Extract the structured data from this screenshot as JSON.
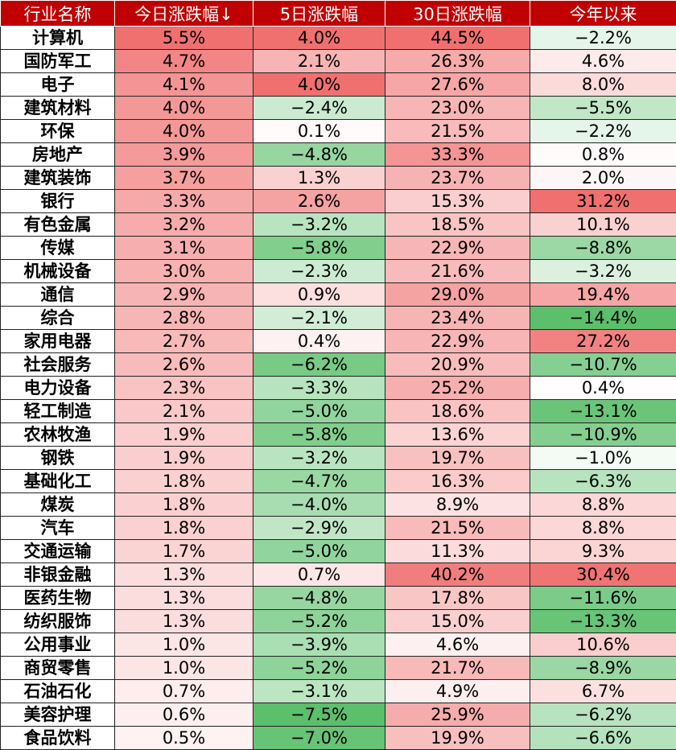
{
  "headers": [
    "行业名称",
    "今日涨跌幅↓",
    "5日涨跌幅",
    "30日涨跌幅",
    "今年以来"
  ],
  "rows": [
    {
      "name": "计算机",
      "d1": "5.5%",
      "d5": "4.0%",
      "d30": "44.5%",
      "ytd": "−2.2%"
    },
    {
      "name": "国防军工",
      "d1": "4.7%",
      "d5": "2.1%",
      "d30": "26.3%",
      "ytd": "4.6%"
    },
    {
      "name": "电子",
      "d1": "4.1%",
      "d5": "4.0%",
      "d30": "27.6%",
      "ytd": "8.0%"
    },
    {
      "name": "建筑材料",
      "d1": "4.0%",
      "d5": "−2.4%",
      "d30": "23.0%",
      "ytd": "−5.5%"
    },
    {
      "name": "环保",
      "d1": "4.0%",
      "d5": "0.1%",
      "d30": "21.5%",
      "ytd": "−2.2%"
    },
    {
      "name": "房地产",
      "d1": "3.9%",
      "d5": "−4.8%",
      "d30": "33.3%",
      "ytd": "0.8%"
    },
    {
      "name": "建筑装饰",
      "d1": "3.7%",
      "d5": "1.3%",
      "d30": "23.7%",
      "ytd": "2.0%"
    },
    {
      "name": "银行",
      "d1": "3.3%",
      "d5": "2.6%",
      "d30": "15.3%",
      "ytd": "31.2%"
    },
    {
      "name": "有色金属",
      "d1": "3.2%",
      "d5": "−3.2%",
      "d30": "18.5%",
      "ytd": "10.1%"
    },
    {
      "name": "传媒",
      "d1": "3.1%",
      "d5": "−5.8%",
      "d30": "22.9%",
      "ytd": "−8.8%"
    },
    {
      "name": "机械设备",
      "d1": "3.0%",
      "d5": "−2.3%",
      "d30": "21.6%",
      "ytd": "−3.2%"
    },
    {
      "name": "通信",
      "d1": "2.9%",
      "d5": "0.9%",
      "d30": "29.0%",
      "ytd": "19.4%"
    },
    {
      "name": "综合",
      "d1": "2.8%",
      "d5": "−2.1%",
      "d30": "23.4%",
      "ytd": "−14.4%"
    },
    {
      "name": "家用电器",
      "d1": "2.7%",
      "d5": "0.4%",
      "d30": "22.9%",
      "ytd": "27.2%"
    },
    {
      "name": "社会服务",
      "d1": "2.6%",
      "d5": "−6.2%",
      "d30": "20.9%",
      "ytd": "−10.7%"
    },
    {
      "name": "电力设备",
      "d1": "2.3%",
      "d5": "−3.3%",
      "d30": "25.2%",
      "ytd": "0.4%"
    },
    {
      "name": "轻工制造",
      "d1": "2.1%",
      "d5": "−5.0%",
      "d30": "18.6%",
      "ytd": "−13.1%"
    },
    {
      "name": "农林牧渔",
      "d1": "1.9%",
      "d5": "−5.8%",
      "d30": "13.6%",
      "ytd": "−10.9%"
    },
    {
      "name": "钢铁",
      "d1": "1.9%",
      "d5": "−3.2%",
      "d30": "19.7%",
      "ytd": "−1.0%"
    },
    {
      "name": "基础化工",
      "d1": "1.8%",
      "d5": "−4.7%",
      "d30": "16.3%",
      "ytd": "−6.3%"
    },
    {
      "name": "煤炭",
      "d1": "1.8%",
      "d5": "−4.0%",
      "d30": "8.9%",
      "ytd": "8.8%"
    },
    {
      "name": "汽车",
      "d1": "1.8%",
      "d5": "−2.9%",
      "d30": "21.5%",
      "ytd": "8.8%"
    },
    {
      "name": "交通运输",
      "d1": "1.7%",
      "d5": "−5.0%",
      "d30": "11.3%",
      "ytd": "9.3%"
    },
    {
      "name": "非银金融",
      "d1": "1.3%",
      "d5": "0.7%",
      "d30": "40.2%",
      "ytd": "30.4%"
    },
    {
      "name": "医药生物",
      "d1": "1.3%",
      "d5": "−4.8%",
      "d30": "17.8%",
      "ytd": "−11.6%"
    },
    {
      "name": "纺织服饰",
      "d1": "1.3%",
      "d5": "−5.2%",
      "d30": "15.0%",
      "ytd": "−13.3%"
    },
    {
      "name": "公用事业",
      "d1": "1.0%",
      "d5": "−3.9%",
      "d30": "4.6%",
      "ytd": "10.6%"
    },
    {
      "name": "商贸零售",
      "d1": "1.0%",
      "d5": "−5.2%",
      "d30": "21.7%",
      "ytd": "−8.9%"
    },
    {
      "name": "石油石化",
      "d1": "0.7%",
      "d5": "−3.1%",
      "d30": "4.9%",
      "ytd": "6.7%"
    },
    {
      "name": "美容护理",
      "d1": "0.6%",
      "d5": "−7.5%",
      "d30": "25.9%",
      "ytd": "−6.2%"
    },
    {
      "name": "食品饮料",
      "d1": "0.5%",
      "d5": "−7.0%",
      "d30": "19.9%",
      "ytd": "−6.6%"
    }
  ],
  "colors": {
    "header_bg": "#c00000",
    "header_text": "#ffffff",
    "positive_max": "#f07070",
    "negative_max": "#5cbf6c",
    "neutral": "#ffffff"
  }
}
